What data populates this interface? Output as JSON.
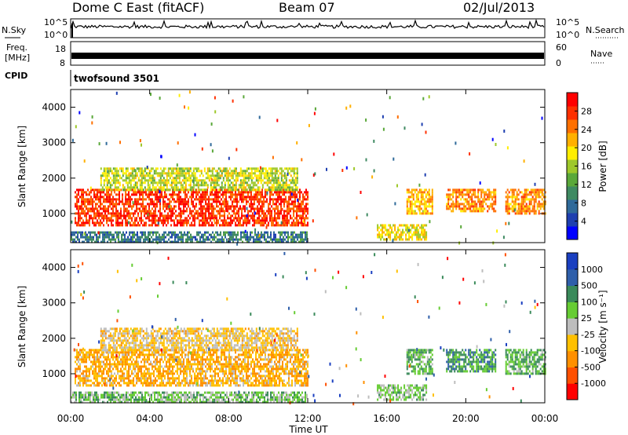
{
  "header": {
    "title": "Dome C East (fitACF)",
    "beam": "Beam 07",
    "date": "02/Jul/2013"
  },
  "left_labels": {
    "nsky": "N.Sky",
    "freq_line1": "Freq.",
    "freq_line2": "[MHz]",
    "cpid": "CPID"
  },
  "right_labels": {
    "nsearch": "N.Search",
    "nave": "Nave"
  },
  "nsky_panel": {
    "left_ticks": [
      "10^5",
      "10^0"
    ],
    "right_ticks": [
      "10^5",
      "10^0"
    ]
  },
  "freq_panel": {
    "left_ticks": [
      "18",
      "8"
    ],
    "right_ticks": [
      "60",
      "0"
    ]
  },
  "cpid_panel": {
    "text": "twofsound 3501"
  },
  "chart_data": [
    {
      "type": "heatmap",
      "name_label": "Power",
      "ylabel": "Slant Range [km]",
      "yticks": [
        "4000",
        "3000",
        "2000",
        "1000"
      ],
      "ylim": [
        180,
        4500
      ],
      "xlim": [
        0,
        24
      ],
      "xticks": [
        "00:00",
        "04:00",
        "08:00",
        "12:00",
        "16:00",
        "20:00",
        "00:00"
      ],
      "colorbar": {
        "label": "Power [dB]",
        "ticks": [
          "28",
          "24",
          "20",
          "16",
          "12",
          "8",
          "4"
        ],
        "range": [
          0,
          30
        ],
        "colors": [
          "#0000ff",
          "#1e3fb0",
          "#2f6a9a",
          "#3f8a62",
          "#5aa83a",
          "#9ec82a",
          "#ffee00",
          "#ffb000",
          "#ff7000",
          "#ff3000",
          "#ff0000"
        ]
      },
      "regions": [
        {
          "t": [
            0.2,
            12.0
          ],
          "r": [
            700,
            1700
          ],
          "value": 26
        },
        {
          "t": [
            1.5,
            11.5
          ],
          "r": [
            1700,
            2300
          ],
          "value": 16
        },
        {
          "t": [
            0.0,
            12.0
          ],
          "r": [
            200,
            500
          ],
          "value": 8
        },
        {
          "t": [
            15.5,
            18.0
          ],
          "r": [
            250,
            700
          ],
          "value": 18
        },
        {
          "t": [
            17.0,
            18.3
          ],
          "r": [
            1000,
            1700
          ],
          "value": 20
        },
        {
          "t": [
            19.0,
            21.5
          ],
          "r": [
            1100,
            1700
          ],
          "value": 22
        },
        {
          "t": [
            22.0,
            24.0
          ],
          "r": [
            1000,
            1700
          ],
          "value": 22
        }
      ]
    },
    {
      "type": "heatmap",
      "name_label": "Velocity",
      "ylabel": "Slant Range [km]",
      "yticks": [
        "4000",
        "3000",
        "2000",
        "1000"
      ],
      "ylim": [
        180,
        4500
      ],
      "xlim": [
        0,
        24
      ],
      "xticks": [
        "00:00",
        "04:00",
        "08:00",
        "12:00",
        "16:00",
        "20:00",
        "00:00"
      ],
      "xlabel": "Time UT",
      "colorbar": {
        "label": "Velocity [m s⁻¹]",
        "ticks": [
          "1000",
          "500",
          "100",
          "25",
          "-25",
          "-100",
          "-500",
          "-1000"
        ],
        "range": [
          -1000,
          1000
        ],
        "colors": [
          "#ff0000",
          "#ff5000",
          "#ff9000",
          "#ffc000",
          "#bdbdbd",
          "#66cc33",
          "#3a8a5a",
          "#2f5faa",
          "#1a3fc0"
        ]
      },
      "regions": [
        {
          "t": [
            0.2,
            12.0
          ],
          "r": [
            700,
            1700
          ],
          "value": -300
        },
        {
          "t": [
            1.5,
            11.5
          ],
          "r": [
            1700,
            2300
          ],
          "value": -150
        },
        {
          "t": [
            0.0,
            12.0
          ],
          "r": [
            200,
            500
          ],
          "value": 200
        },
        {
          "t": [
            15.5,
            18.0
          ],
          "r": [
            250,
            700
          ],
          "value": 150
        },
        {
          "t": [
            17.0,
            18.3
          ],
          "r": [
            1000,
            1700
          ],
          "value": 300
        },
        {
          "t": [
            19.0,
            21.5
          ],
          "r": [
            1100,
            1700
          ],
          "value": 400
        },
        {
          "t": [
            22.0,
            24.0
          ],
          "r": [
            1000,
            1700
          ],
          "value": 300
        }
      ]
    }
  ]
}
